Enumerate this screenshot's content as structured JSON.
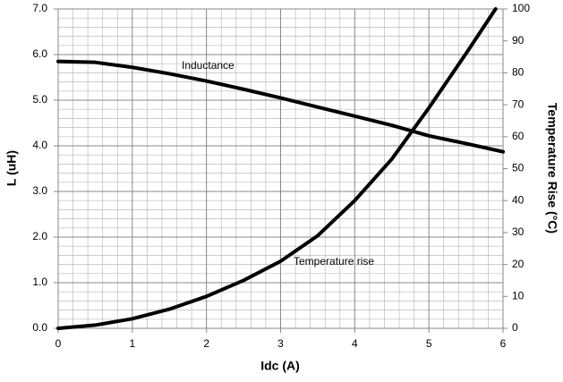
{
  "chart_data": {
    "type": "line",
    "xlabel": "Idc (A)",
    "ylabel": "L (uH)",
    "y2label": "Temperature Rise (°C)",
    "annotations": [
      "Inductance",
      "Temperature rise"
    ],
    "xlim": [
      0,
      6
    ],
    "xticks": [
      0,
      1,
      2,
      3,
      4,
      5,
      6
    ],
    "ylim": [
      0,
      7
    ],
    "yticks": [
      {
        "value": 0,
        "label": "0.0"
      },
      {
        "value": 1,
        "label": "1.0"
      },
      {
        "value": 2,
        "label": "2.0"
      },
      {
        "value": 3,
        "label": "3.0"
      },
      {
        "value": 4,
        "label": "4.0"
      },
      {
        "value": 5,
        "label": "5.0"
      },
      {
        "value": 6,
        "label": "6.0"
      },
      {
        "value": 7,
        "label": "7.0"
      }
    ],
    "y2lim": [
      0,
      100
    ],
    "y2ticks": [
      0,
      10,
      20,
      30,
      40,
      50,
      60,
      70,
      80,
      90,
      100
    ],
    "grid": {
      "major": true,
      "minor_divisions": 5
    },
    "series": [
      {
        "name": "Inductance",
        "color": "#000000",
        "x": [
          0,
          0.5,
          1,
          1.5,
          2,
          2.5,
          3,
          3.5,
          4,
          4.5,
          5,
          5.5,
          6
        ],
        "values": [
          5.85,
          5.83,
          5.72,
          5.58,
          5.42,
          5.24,
          5.05,
          4.85,
          4.65,
          4.45,
          4.22,
          4.05,
          3.87
        ]
      },
      {
        "name": "Temperature rise",
        "color": "#000000",
        "axis": "y2",
        "x": [
          0,
          0.5,
          1,
          1.5,
          2,
          2.5,
          3,
          3.5,
          4,
          4.5,
          5,
          5.5,
          5.9
        ],
        "values": [
          0,
          1,
          3,
          6,
          10,
          15,
          21,
          29,
          40,
          53,
          69,
          86,
          100
        ]
      }
    ]
  }
}
